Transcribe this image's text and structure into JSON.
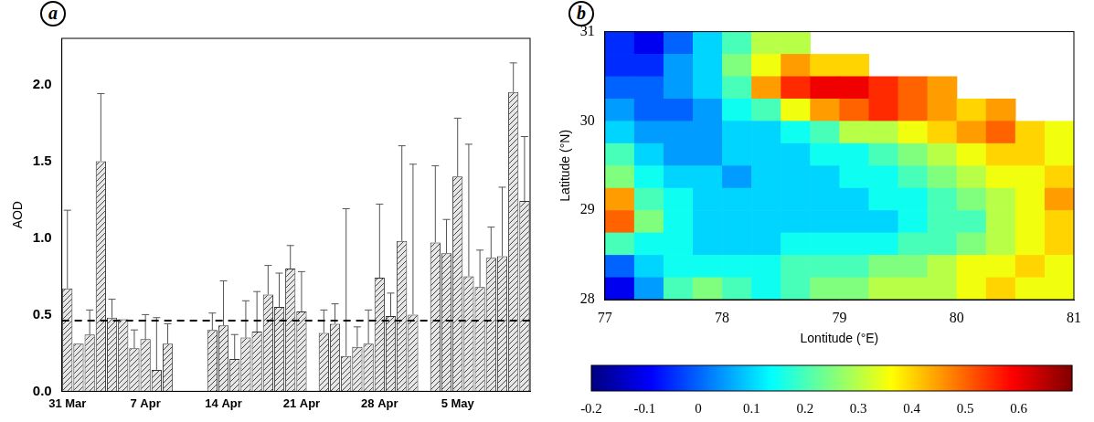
{
  "chart_data": [
    {
      "type": "bar",
      "panel": "a",
      "y_label": "AOD",
      "categories": [
        "31 Mar",
        null,
        null,
        null,
        null,
        null,
        null,
        "7 Apr",
        null,
        null,
        null,
        null,
        null,
        null,
        "14 Apr",
        null,
        null,
        null,
        null,
        null,
        null,
        "21 Apr",
        null,
        null,
        null,
        null,
        null,
        null,
        "28 Apr",
        null,
        null,
        null,
        null,
        null,
        null,
        "5 May",
        null,
        null,
        null,
        null,
        null,
        null
      ],
      "values": [
        0.67,
        0.31,
        0.37,
        1.5,
        0.48,
        0.47,
        0.28,
        0.34,
        0.14,
        0.31,
        null,
        null,
        null,
        0.4,
        0.43,
        0.21,
        0.35,
        0.39,
        0.63,
        0.55,
        0.8,
        0.52,
        null,
        0.38,
        0.44,
        0.23,
        0.29,
        0.31,
        0.74,
        0.49,
        0.98,
        0.5,
        null,
        0.97,
        0.9,
        1.4,
        0.75,
        0.68,
        0.87,
        0.88,
        1.95,
        1.24
      ],
      "error_high": [
        1.18,
        null,
        0.53,
        1.94,
        0.6,
        null,
        0.4,
        0.5,
        0.48,
        0.44,
        null,
        null,
        null,
        0.51,
        0.72,
        0.37,
        0.59,
        0.65,
        0.82,
        0.77,
        0.95,
        0.78,
        null,
        0.53,
        0.57,
        1.19,
        0.42,
        0.53,
        1.22,
        0.64,
        1.6,
        1.48,
        null,
        1.47,
        1.12,
        1.78,
        1.61,
        0.92,
        1.07,
        1.33,
        2.14,
        1.66
      ],
      "reference_line": 0.46,
      "color": "#444444",
      "ylim": [
        0,
        2.3
      ],
      "yticks": [
        {
          "value": 0,
          "label": "0.0"
        },
        {
          "value": 0.5,
          "label": "0.5"
        },
        {
          "value": 1,
          "label": "1.0"
        },
        {
          "value": 1.5,
          "label": "1.5"
        },
        {
          "value": 2,
          "label": "2.0"
        }
      ],
      "grid": false
    },
    {
      "type": "heatmap",
      "panel": "b",
      "x_label": "Lontitude (°E)",
      "y_label": "Latitude (°N)",
      "x": [
        77.125,
        77.375,
        77.625,
        77.875,
        78.125,
        78.375,
        78.625,
        78.875,
        79.125,
        79.375,
        79.625,
        79.875,
        80.125,
        80.375,
        80.625,
        80.875
      ],
      "y": [
        30.875,
        30.625,
        30.375,
        30.125,
        29.875,
        29.625,
        29.375,
        29.125,
        28.875,
        28.625,
        28.375,
        28.125
      ],
      "z": [
        [
          -0.05,
          -0.1,
          0.0,
          0.1,
          0.2,
          0.3,
          0.3,
          null,
          null,
          null,
          null,
          null,
          null,
          null,
          null,
          null
        ],
        [
          -0.05,
          -0.05,
          0.05,
          0.1,
          0.25,
          0.35,
          0.45,
          0.4,
          0.4,
          null,
          null,
          null,
          null,
          null,
          null,
          null
        ],
        [
          0.0,
          0.0,
          0.05,
          0.1,
          0.2,
          0.45,
          0.55,
          0.6,
          0.6,
          0.55,
          0.5,
          0.45,
          null,
          null,
          null,
          null
        ],
        [
          0.05,
          0.0,
          0.0,
          0.05,
          0.15,
          0.2,
          0.35,
          0.45,
          0.5,
          0.55,
          0.5,
          0.45,
          0.4,
          0.45,
          null,
          null
        ],
        [
          0.1,
          0.05,
          0.05,
          0.05,
          0.1,
          0.1,
          0.15,
          0.2,
          0.3,
          0.3,
          0.35,
          0.4,
          0.45,
          0.5,
          0.4,
          0.35
        ],
        [
          0.2,
          0.1,
          0.05,
          0.05,
          0.1,
          0.1,
          0.1,
          0.15,
          0.15,
          0.2,
          0.25,
          0.3,
          0.35,
          0.4,
          0.4,
          0.35
        ],
        [
          0.25,
          0.15,
          0.1,
          0.1,
          0.05,
          0.1,
          0.1,
          0.1,
          0.15,
          0.15,
          0.2,
          0.25,
          0.3,
          0.35,
          0.35,
          0.4
        ],
        [
          0.45,
          0.2,
          0.15,
          0.1,
          0.1,
          0.1,
          0.1,
          0.1,
          0.1,
          0.15,
          0.15,
          0.2,
          0.25,
          0.3,
          0.35,
          0.45
        ],
        [
          0.5,
          0.25,
          0.15,
          0.1,
          0.1,
          0.1,
          0.1,
          0.1,
          0.1,
          0.1,
          0.15,
          0.2,
          0.2,
          0.3,
          0.35,
          0.4
        ],
        [
          0.2,
          0.15,
          0.15,
          0.1,
          0.1,
          0.1,
          0.15,
          0.15,
          0.15,
          0.15,
          0.2,
          0.2,
          0.25,
          0.3,
          0.35,
          0.4
        ],
        [
          0.0,
          0.1,
          0.15,
          0.15,
          0.15,
          0.15,
          0.2,
          0.2,
          0.2,
          0.25,
          0.25,
          0.3,
          0.35,
          0.35,
          0.4,
          0.35
        ],
        [
          -0.1,
          0.05,
          0.2,
          0.25,
          0.2,
          0.15,
          0.2,
          0.25,
          0.25,
          0.3,
          0.3,
          0.3,
          0.35,
          0.4,
          0.35,
          0.35
        ]
      ],
      "xlim": [
        77,
        81
      ],
      "xticks": [
        77,
        78,
        79,
        80,
        81
      ],
      "ylim": [
        28,
        31
      ],
      "yticks": [
        28,
        29,
        30,
        31
      ],
      "color_range": [
        -0.2,
        0.7
      ],
      "color_ticks": [
        -0.2,
        -0.1,
        0,
        0.1,
        0.2,
        0.3,
        0.4,
        0.5,
        0.6
      ],
      "grid": false
    }
  ]
}
